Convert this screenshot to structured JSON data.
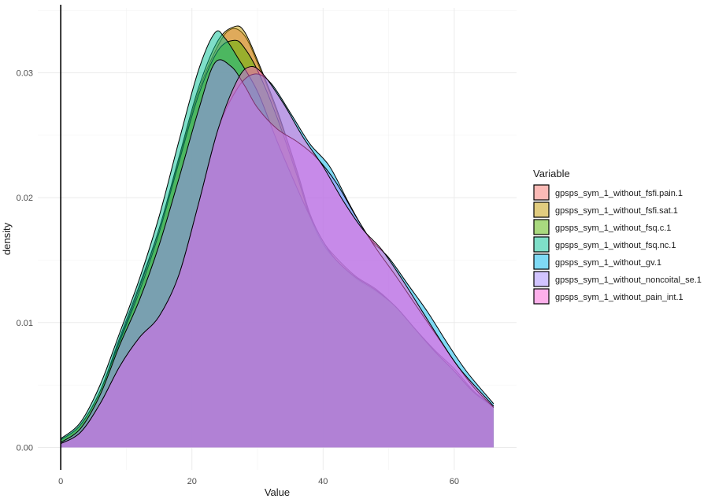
{
  "chart_data": {
    "type": "area",
    "subtype": "density",
    "xlabel": "Value",
    "ylabel": "density",
    "xlim": [
      -3.5,
      69.5
    ],
    "ylim": [
      -0.0018,
      0.0352
    ],
    "x_ticks": [
      0,
      20,
      40,
      60
    ],
    "y_ticks": [
      0.0,
      0.01,
      0.02,
      0.03
    ],
    "x_tick_labels": [
      "0",
      "20",
      "40",
      "60"
    ],
    "y_tick_labels": [
      "0.00",
      "0.01",
      "0.02",
      "0.03"
    ],
    "grid": true,
    "vertical_line_x": 0,
    "legend": {
      "title": "Variable",
      "position": "right"
    },
    "series": [
      {
        "name": "gpsps_sym_1_without_fsfi.pain.1",
        "color": "#F8766D",
        "points": [
          [
            0,
            0.0006
          ],
          [
            3,
            0.0018
          ],
          [
            6,
            0.0045
          ],
          [
            9,
            0.0088
          ],
          [
            12,
            0.013
          ],
          [
            15,
            0.0175
          ],
          [
            18,
            0.023
          ],
          [
            21,
            0.0285
          ],
          [
            24,
            0.0322
          ],
          [
            26,
            0.0335
          ],
          [
            28,
            0.033
          ],
          [
            30,
            0.0308
          ],
          [
            33,
            0.0268
          ],
          [
            36,
            0.022
          ],
          [
            38,
            0.0185
          ],
          [
            40,
            0.0163
          ],
          [
            42,
            0.015
          ],
          [
            45,
            0.0135
          ],
          [
            48,
            0.0125
          ],
          [
            51,
            0.0113
          ],
          [
            54,
            0.0095
          ],
          [
            57,
            0.0078
          ],
          [
            60,
            0.0063
          ],
          [
            63,
            0.0045
          ],
          [
            66,
            0.0033
          ]
        ]
      },
      {
        "name": "gpsps_sym_1_without_fsfi.sat.1",
        "color": "#C49A00",
        "points": [
          [
            0,
            0.0006
          ],
          [
            3,
            0.0018
          ],
          [
            6,
            0.0045
          ],
          [
            9,
            0.0086
          ],
          [
            12,
            0.0128
          ],
          [
            15,
            0.0175
          ],
          [
            18,
            0.0232
          ],
          [
            21,
            0.0288
          ],
          [
            24,
            0.0326
          ],
          [
            26.5,
            0.0337
          ],
          [
            28,
            0.0333
          ],
          [
            30,
            0.031
          ],
          [
            33,
            0.027
          ],
          [
            36,
            0.0222
          ],
          [
            38,
            0.0187
          ],
          [
            40,
            0.0165
          ],
          [
            42,
            0.0152
          ],
          [
            45,
            0.0137
          ],
          [
            48,
            0.0127
          ],
          [
            51,
            0.0113
          ],
          [
            54,
            0.0095
          ],
          [
            57,
            0.0077
          ],
          [
            60,
            0.0061
          ],
          [
            63,
            0.0044
          ],
          [
            66,
            0.0032
          ]
        ]
      },
      {
        "name": "gpsps_sym_1_without_fsq.c.1",
        "color": "#53B400",
        "points": [
          [
            0,
            0.0006
          ],
          [
            3,
            0.0018
          ],
          [
            6,
            0.0045
          ],
          [
            9,
            0.0085
          ],
          [
            12,
            0.0125
          ],
          [
            15,
            0.0172
          ],
          [
            18,
            0.0228
          ],
          [
            21,
            0.0282
          ],
          [
            24,
            0.0318
          ],
          [
            26.5,
            0.0326
          ],
          [
            28,
            0.032
          ],
          [
            30,
            0.0302
          ],
          [
            33,
            0.0264
          ],
          [
            36,
            0.0218
          ],
          [
            38,
            0.0185
          ],
          [
            40,
            0.0163
          ],
          [
            42,
            0.015
          ],
          [
            45,
            0.0136
          ],
          [
            48,
            0.0126
          ],
          [
            51,
            0.0113
          ],
          [
            54,
            0.0095
          ],
          [
            57,
            0.0077
          ],
          [
            60,
            0.0061
          ],
          [
            63,
            0.0044
          ],
          [
            66,
            0.0032
          ]
        ]
      },
      {
        "name": "gpsps_sym_1_without_fsq.nc.1",
        "color": "#00C094",
        "points": [
          [
            0,
            0.0007
          ],
          [
            3,
            0.002
          ],
          [
            6,
            0.005
          ],
          [
            9,
            0.0092
          ],
          [
            12,
            0.0135
          ],
          [
            15,
            0.0185
          ],
          [
            18,
            0.0245
          ],
          [
            21,
            0.0302
          ],
          [
            23.5,
            0.0332
          ],
          [
            25,
            0.0328
          ],
          [
            27,
            0.0312
          ],
          [
            30,
            0.0285
          ],
          [
            33,
            0.0245
          ],
          [
            36,
            0.0208
          ],
          [
            38,
            0.0185
          ],
          [
            40,
            0.0165
          ],
          [
            42,
            0.015
          ],
          [
            45,
            0.0136
          ],
          [
            48,
            0.0126
          ],
          [
            51,
            0.0113
          ],
          [
            54,
            0.0095
          ],
          [
            57,
            0.0077
          ],
          [
            60,
            0.0061
          ],
          [
            63,
            0.0044
          ],
          [
            66,
            0.0033
          ]
        ]
      },
      {
        "name": "gpsps_sym_1_without_gv.1",
        "color": "#00B6EB",
        "points": [
          [
            0,
            0.0003
          ],
          [
            3,
            0.0012
          ],
          [
            6,
            0.0035
          ],
          [
            9,
            0.0065
          ],
          [
            12,
            0.0088
          ],
          [
            15,
            0.0105
          ],
          [
            18,
            0.0138
          ],
          [
            21,
            0.0195
          ],
          [
            24,
            0.0255
          ],
          [
            27,
            0.0288
          ],
          [
            29.5,
            0.0299
          ],
          [
            32,
            0.0292
          ],
          [
            35,
            0.0268
          ],
          [
            38,
            0.0243
          ],
          [
            41,
            0.0225
          ],
          [
            44,
            0.0195
          ],
          [
            47,
            0.0168
          ],
          [
            50,
            0.0152
          ],
          [
            53,
            0.013
          ],
          [
            56,
            0.0108
          ],
          [
            59,
            0.0083
          ],
          [
            62,
            0.006
          ],
          [
            66,
            0.0035
          ]
        ]
      },
      {
        "name": "gpsps_sym_1_without_noncoital_se.1",
        "color": "#A58AFF",
        "points": [
          [
            0,
            0.0004
          ],
          [
            3,
            0.0015
          ],
          [
            6,
            0.0042
          ],
          [
            9,
            0.0082
          ],
          [
            12,
            0.0118
          ],
          [
            15,
            0.0162
          ],
          [
            18,
            0.0215
          ],
          [
            21,
            0.027
          ],
          [
            23.5,
            0.0308
          ],
          [
            26,
            0.0305
          ],
          [
            28,
            0.029
          ],
          [
            30,
            0.0272
          ],
          [
            33,
            0.0255
          ],
          [
            36,
            0.0245
          ],
          [
            39,
            0.0232
          ],
          [
            42,
            0.0212
          ],
          [
            45,
            0.0185
          ],
          [
            48,
            0.016
          ],
          [
            51,
            0.0138
          ],
          [
            54,
            0.0115
          ],
          [
            57,
            0.0092
          ],
          [
            60,
            0.0069
          ],
          [
            63,
            0.0048
          ],
          [
            66,
            0.0032
          ]
        ]
      },
      {
        "name": "gpsps_sym_1_without_pain_int.1",
        "color": "#FB61D7",
        "points": [
          [
            0,
            0.0003
          ],
          [
            3,
            0.0012
          ],
          [
            6,
            0.0035
          ],
          [
            9,
            0.0065
          ],
          [
            12,
            0.0088
          ],
          [
            15,
            0.0105
          ],
          [
            18,
            0.0138
          ],
          [
            21,
            0.0195
          ],
          [
            24,
            0.0255
          ],
          [
            27,
            0.0295
          ],
          [
            29,
            0.0305
          ],
          [
            31,
            0.0298
          ],
          [
            34,
            0.0275
          ],
          [
            37,
            0.0248
          ],
          [
            40,
            0.0225
          ],
          [
            43,
            0.0198
          ],
          [
            46,
            0.0175
          ],
          [
            49,
            0.0158
          ],
          [
            52,
            0.0135
          ],
          [
            55,
            0.011
          ],
          [
            58,
            0.0085
          ],
          [
            61,
            0.0062
          ],
          [
            66,
            0.0033
          ]
        ]
      }
    ]
  }
}
